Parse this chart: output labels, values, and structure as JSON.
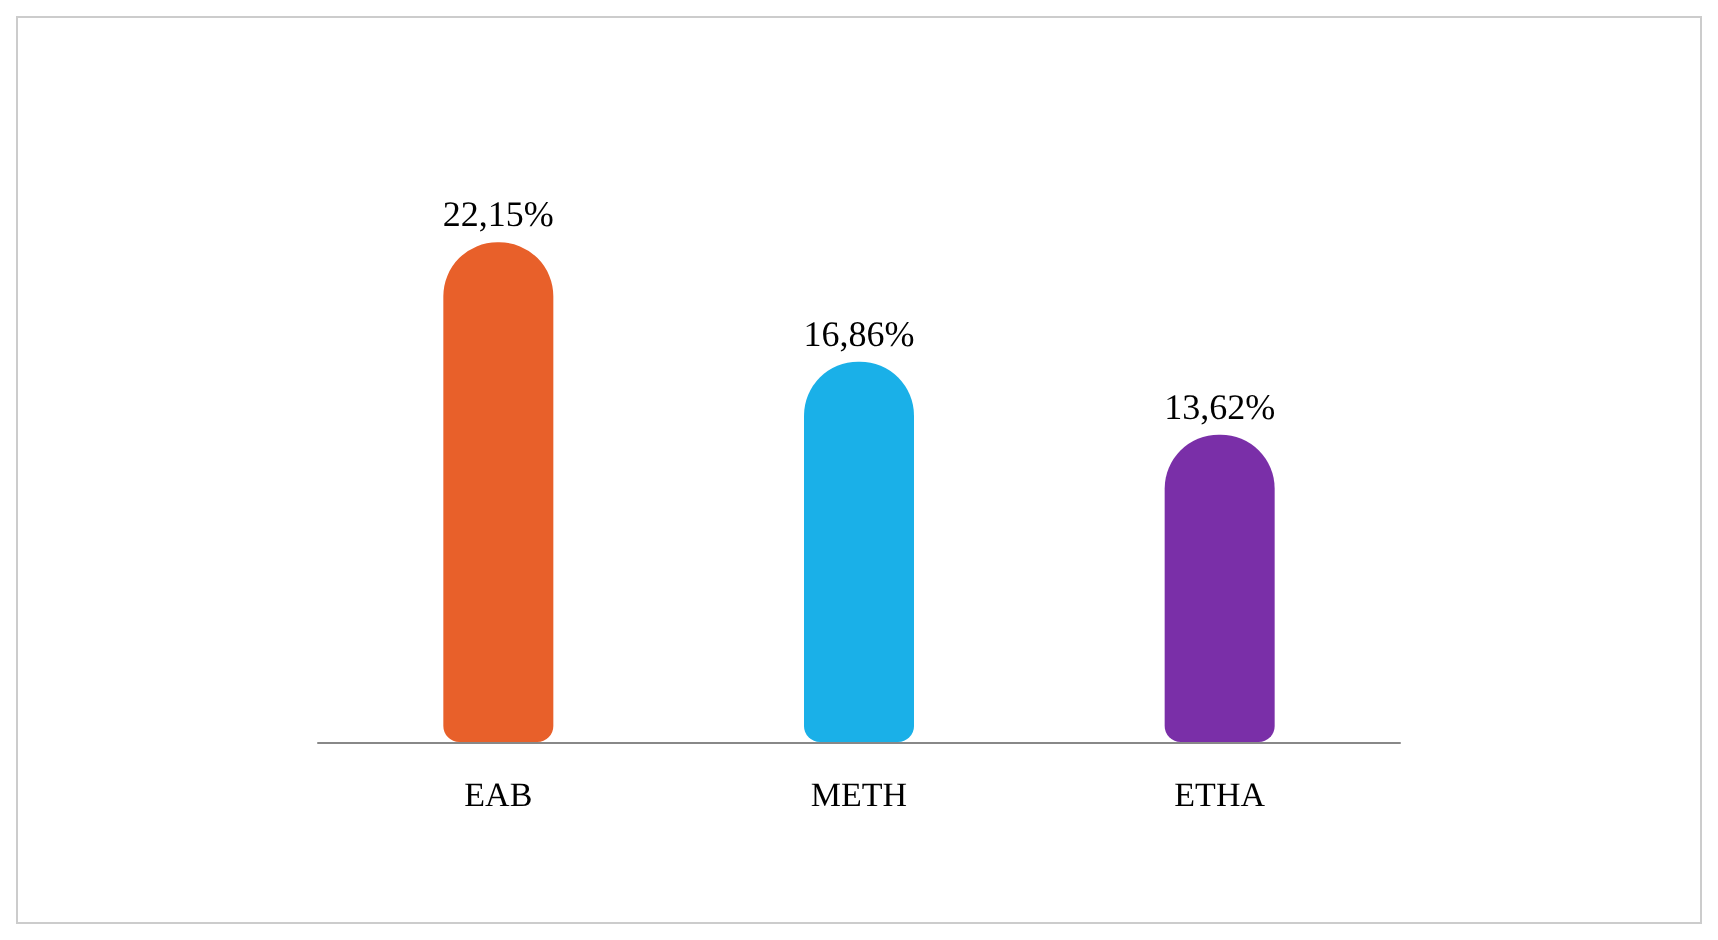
{
  "chart_data": {
    "type": "bar",
    "categories": [
      "EAB",
      "METH",
      "ETHA"
    ],
    "values": [
      22.15,
      16.86,
      13.62
    ],
    "colors": [
      "#e8602a",
      "#1ab0e8",
      "#7a2fa8"
    ],
    "value_labels": [
      "22,15%",
      "16,86%",
      "13,62%"
    ]
  }
}
